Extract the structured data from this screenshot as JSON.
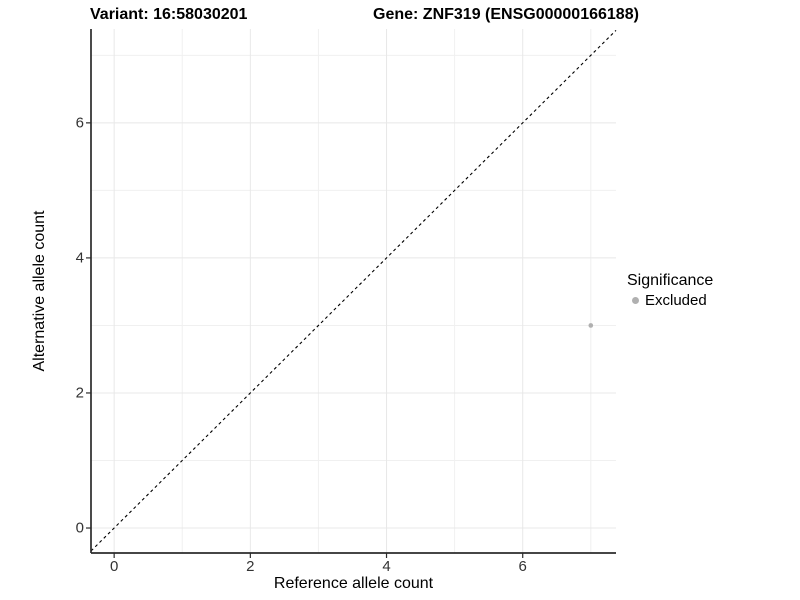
{
  "header": {
    "title_variant": "Variant: 16:58030201",
    "title_gene": "Gene: ZNF319 (ENSG00000166188)"
  },
  "chart_data": {
    "type": "scatter",
    "title": "Variant: 16:58030201    Gene: ZNF319 (ENSG00000166188)",
    "xlabel": "Reference allele count",
    "ylabel": "Alternative allele count",
    "xlim": [
      -0.34,
      7.37
    ],
    "ylim": [
      -0.37,
      7.39
    ],
    "x_ticks": [
      0,
      2,
      4,
      6
    ],
    "y_ticks": [
      0,
      2,
      4,
      6
    ],
    "x_minor_ticks": [
      1,
      3,
      5,
      7
    ],
    "y_minor_ticks": [
      1,
      3,
      5,
      7
    ],
    "grid": true,
    "legend_position": "right",
    "reference_line": {
      "kind": "identity",
      "style": "dashed",
      "x1": -0.34,
      "y1": -0.34,
      "x2": 7.37,
      "y2": 7.37,
      "color": "#000000"
    },
    "series": [
      {
        "name": "Excluded",
        "color": "#b0b0b0",
        "marker": "circle",
        "points": [
          {
            "x": 7,
            "y": 3
          }
        ]
      }
    ],
    "legend": {
      "title": "Significance",
      "items": [
        {
          "label": "Excluded",
          "color": "#b0b0b0"
        }
      ]
    }
  },
  "colors": {
    "background": "#ffffff",
    "grid_major": "#e8e8e8",
    "grid_minor": "#f0f0f0",
    "axis_line": "#2b2b2b",
    "tick_mark": "#2b2b2b",
    "tick_label": "#333333",
    "title": "#000000"
  }
}
